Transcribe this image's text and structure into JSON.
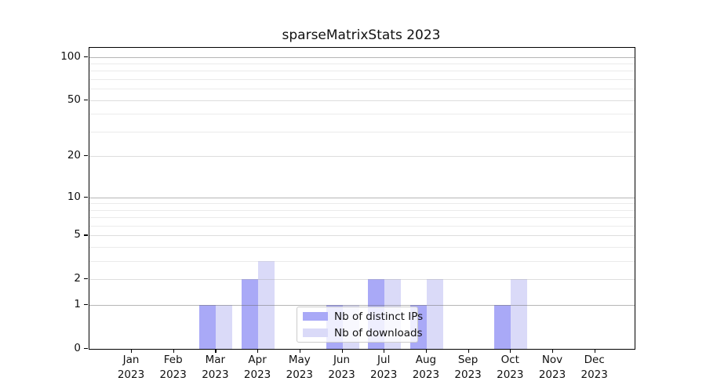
{
  "title": "sparseMatrixStats 2023",
  "colors": {
    "distinct_ips": "#a9a9f7",
    "downloads": "#dadaf8",
    "axis": "#000000"
  },
  "chart_data": {
    "type": "bar",
    "title": "sparseMatrixStats 2023",
    "scale": "log1p",
    "months": [
      "Jan",
      "Feb",
      "Mar",
      "Apr",
      "May",
      "Jun",
      "Jul",
      "Aug",
      "Sep",
      "Oct",
      "Nov",
      "Dec"
    ],
    "year": "2023",
    "series": [
      {
        "name": "Nb of distinct IPs",
        "color": "#a9a9f7",
        "values": [
          0,
          0,
          1,
          2,
          0,
          1,
          2,
          1,
          0,
          1,
          0,
          0
        ]
      },
      {
        "name": "Nb of downloads",
        "color": "#dadaf8",
        "values": [
          0,
          0,
          1,
          3,
          0,
          1,
          2,
          2,
          0,
          2,
          0,
          0
        ]
      }
    ],
    "y_ticks": [
      0,
      1,
      2,
      5,
      10,
      20,
      50,
      100
    ],
    "y_major_gridlines": [
      1,
      10,
      100
    ],
    "y_mid_gridlines": [
      2,
      5,
      20,
      50
    ],
    "y_minor_gridlines": [
      3,
      4,
      6,
      7,
      8,
      9,
      30,
      40,
      60,
      70,
      80,
      90
    ],
    "ylim": [
      0,
      116
    ],
    "xlabel": "",
    "ylabel": "",
    "grid": true,
    "legend_position": "bottom-center",
    "legend_items": [
      "Nb of distinct IPs",
      "Nb of downloads"
    ]
  }
}
